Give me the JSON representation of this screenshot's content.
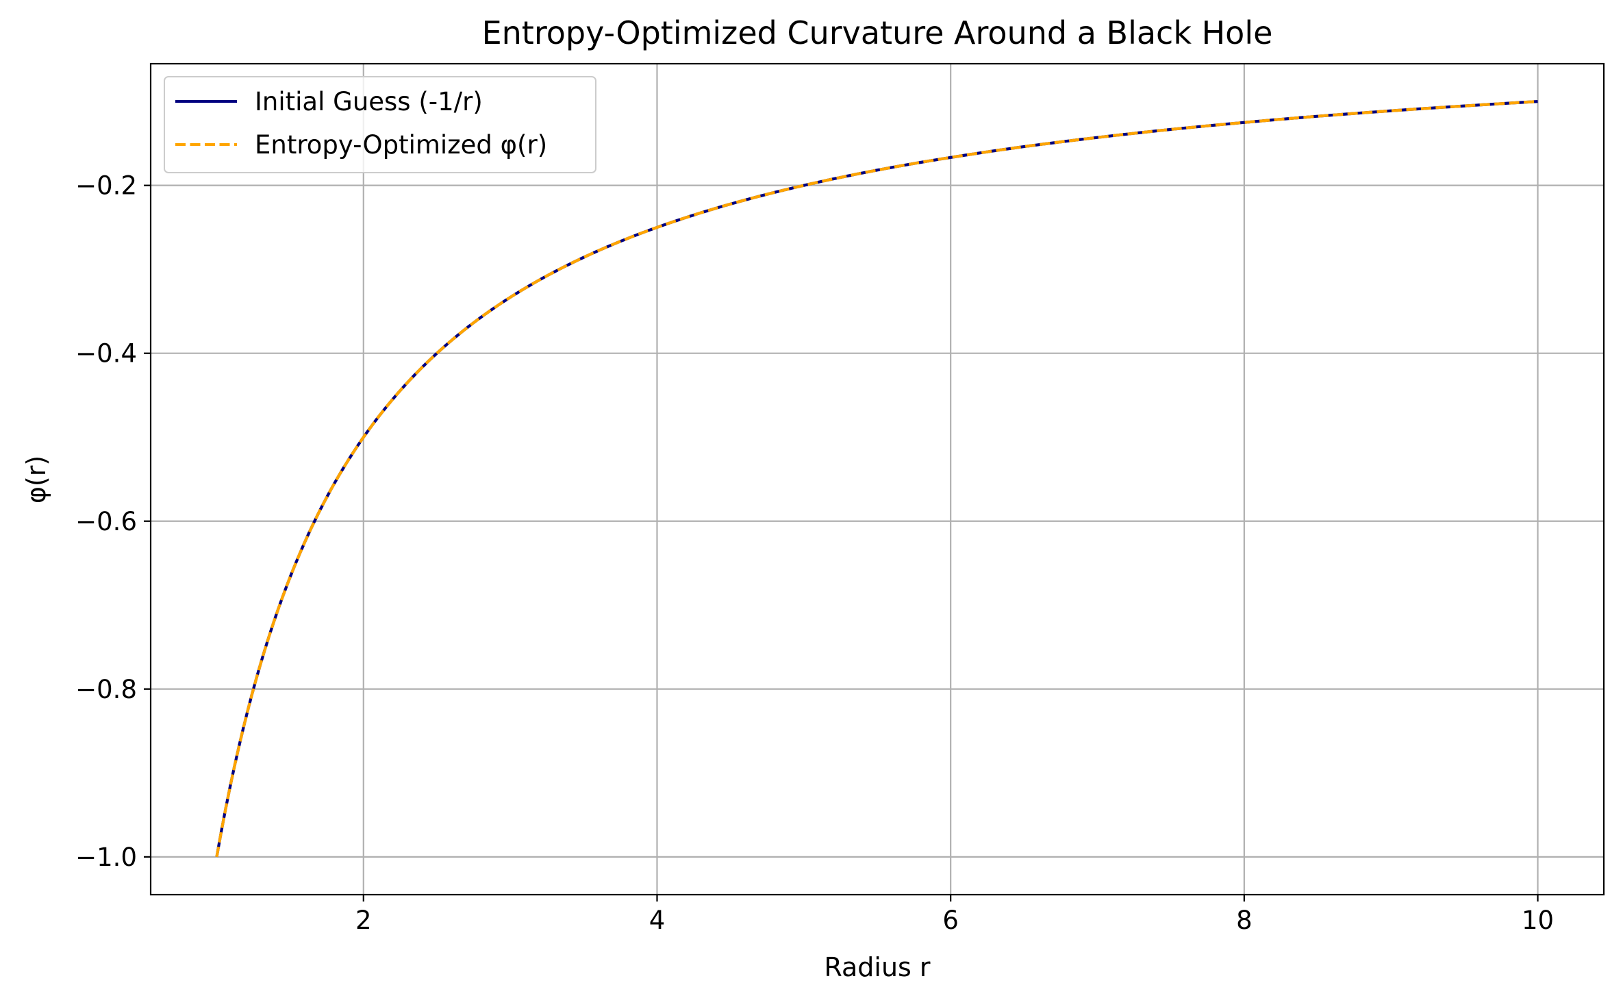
{
  "chart_data": {
    "type": "line",
    "title": "Entropy-Optimized Curvature Around a Black Hole",
    "xlabel": "Radius r",
    "ylabel": "φ(r)",
    "xlim": [
      0.55,
      10.45
    ],
    "ylim": [
      -1.045,
      -0.055
    ],
    "x_ticks": [
      2,
      4,
      6,
      8,
      10
    ],
    "x_tick_labels": [
      "2",
      "4",
      "6",
      "8",
      "10"
    ],
    "y_ticks": [
      -0.2,
      -0.4,
      -0.6,
      -0.8,
      -1.0
    ],
    "y_tick_labels": [
      "−0.2",
      "−0.4",
      "−0.6",
      "−0.8",
      "−1.0"
    ],
    "grid": true,
    "legend_position": "upper-left",
    "x_range": [
      1,
      10
    ],
    "series": [
      {
        "name": "Initial Guess (-1/r)",
        "color": "#000080",
        "style": "solid",
        "x": [
          1,
          1.25,
          1.5,
          1.75,
          2,
          2.5,
          3,
          3.5,
          4,
          4.5,
          5,
          5.5,
          6,
          6.5,
          7,
          7.5,
          8,
          8.5,
          9,
          9.5,
          10
        ],
        "y": [
          -1.0,
          -0.8,
          -0.6667,
          -0.5714,
          -0.5,
          -0.4,
          -0.3333,
          -0.2857,
          -0.25,
          -0.2222,
          -0.2,
          -0.1818,
          -0.1667,
          -0.1538,
          -0.1429,
          -0.1333,
          -0.125,
          -0.1176,
          -0.1111,
          -0.1053,
          -0.1
        ]
      },
      {
        "name": "Entropy-Optimized φ(r)",
        "color": "#FFA500",
        "style": "dashed",
        "x": [
          1,
          1.25,
          1.5,
          1.75,
          2,
          2.5,
          3,
          3.5,
          4,
          4.5,
          5,
          5.5,
          6,
          6.5,
          7,
          7.5,
          8,
          8.5,
          9,
          9.5,
          10
        ],
        "y": [
          -1.0,
          -0.8,
          -0.6667,
          -0.5714,
          -0.5,
          -0.4,
          -0.3333,
          -0.2857,
          -0.25,
          -0.2222,
          -0.2,
          -0.1818,
          -0.1667,
          -0.1538,
          -0.1429,
          -0.1333,
          -0.125,
          -0.1176,
          -0.1111,
          -0.1053,
          -0.1
        ]
      }
    ]
  }
}
